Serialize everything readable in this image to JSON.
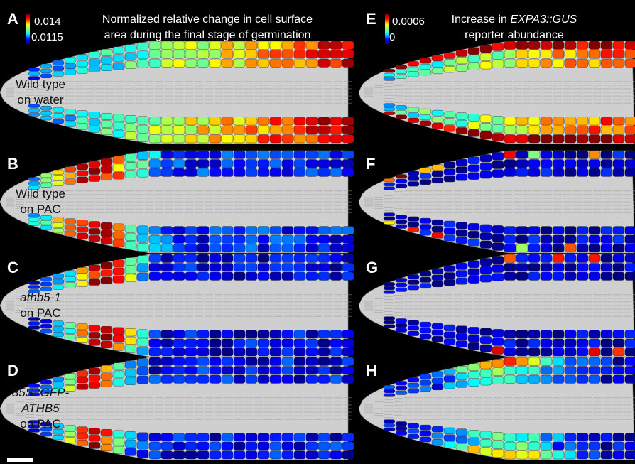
{
  "panels": [
    {
      "letter": "A"
    },
    {
      "letter": "B"
    },
    {
      "letter": "C"
    },
    {
      "letter": "D"
    },
    {
      "letter": "E"
    },
    {
      "letter": "F"
    },
    {
      "letter": "G"
    },
    {
      "letter": "H"
    }
  ],
  "colorbars": [
    {
      "max": "0.014",
      "min": "0.0115"
    },
    {
      "max": "0.0006",
      "min": "0"
    }
  ],
  "titles": [
    {
      "line1": "Normalized relative change in cell surface",
      "line2": "area during the final stage of germination"
    },
    {
      "line1_prefix": "Increase in ",
      "line1_italic": "EXPA3::GUS",
      "line2": "reporter abundance"
    }
  ],
  "row_labels": [
    {
      "lines": [
        "Wild type",
        "on water"
      ],
      "italic": [
        false,
        false
      ]
    },
    {
      "lines": [
        "Wild type",
        "on PAC"
      ],
      "italic": [
        false,
        false
      ]
    },
    {
      "lines": [
        "athb5-1",
        "on PAC"
      ],
      "italic": [
        true,
        false
      ]
    },
    {
      "lines": [
        "35S::GFP-",
        "ATHB5",
        "on PAC"
      ],
      "italic": [
        true,
        true,
        false
      ]
    }
  ]
}
